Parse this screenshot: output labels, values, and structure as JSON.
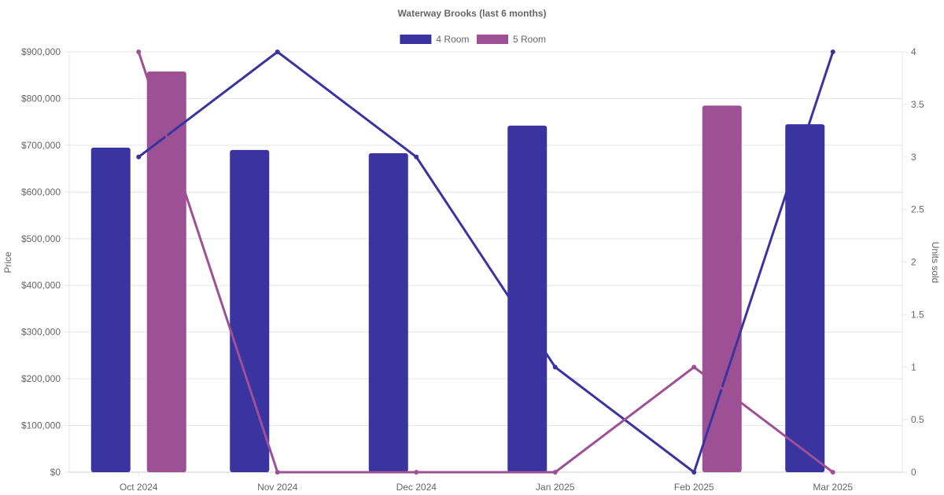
{
  "chart_data": {
    "type": "bar",
    "title": "Waterway Brooks (last 6 months)",
    "categories": [
      "Oct 2024",
      "Nov 2024",
      "Dec 2024",
      "Jan 2025",
      "Feb 2025",
      "Mar 2025"
    ],
    "series": [
      {
        "name": "4 Room",
        "color": "#3a34a0",
        "price": [
          695000,
          690000,
          683000,
          742000,
          null,
          745000
        ],
        "units_sold": [
          3,
          4,
          3,
          1,
          0,
          4
        ]
      },
      {
        "name": "5 Room",
        "color": "#9e5095",
        "price": [
          858000,
          null,
          null,
          null,
          785000,
          null
        ],
        "units_sold": [
          4,
          0,
          0,
          0,
          1,
          0
        ]
      }
    ],
    "y_left": {
      "label": "Price",
      "min": 0,
      "max": 900000,
      "ticks": [
        "$0",
        "$100,000",
        "$200,000",
        "$300,000",
        "$400,000",
        "$500,000",
        "$600,000",
        "$700,000",
        "$800,000",
        "$900,000"
      ]
    },
    "y_right": {
      "label": "Units sold",
      "min": 0,
      "max": 4,
      "ticks": [
        "0",
        "0.5",
        "1",
        "1.5",
        "2",
        "2.5",
        "3",
        "3.5",
        "4"
      ]
    },
    "legend_position": "top-center",
    "grid": true
  }
}
